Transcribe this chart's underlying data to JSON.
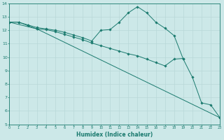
{
  "background_color": "#cce8e8",
  "grid_color": "#b8d8d8",
  "line_color": "#1a7a6e",
  "xlabel": "Humidex (Indice chaleur)",
  "xlim": [
    0,
    23
  ],
  "ylim": [
    5,
    14
  ],
  "yticks": [
    5,
    6,
    7,
    8,
    9,
    10,
    11,
    12,
    13,
    14
  ],
  "xticks": [
    0,
    1,
    2,
    3,
    4,
    5,
    6,
    7,
    8,
    9,
    10,
    11,
    12,
    13,
    14,
    15,
    16,
    17,
    18,
    19,
    20,
    21,
    22,
    23
  ],
  "series1_x": [
    0,
    1,
    2,
    3,
    4,
    5,
    6,
    7,
    8,
    9,
    10,
    11,
    12,
    13,
    14,
    15,
    16,
    17,
    18,
    19,
    20,
    21,
    22,
    23
  ],
  "series1_y": [
    12.6,
    12.6,
    12.4,
    12.2,
    12.1,
    12.0,
    11.85,
    11.65,
    11.45,
    11.2,
    12.0,
    12.05,
    12.6,
    13.3,
    13.75,
    13.3,
    12.6,
    12.15,
    11.6,
    9.85,
    8.5,
    6.6,
    6.45,
    5.5
  ],
  "series2_x": [
    0,
    1,
    2,
    3,
    4,
    5,
    6,
    7,
    8,
    9,
    10,
    11,
    12,
    13,
    14,
    15,
    16,
    17,
    18,
    19
  ],
  "series2_y": [
    12.6,
    12.6,
    12.35,
    12.1,
    12.05,
    11.9,
    11.7,
    11.5,
    11.3,
    11.05,
    10.85,
    10.65,
    10.45,
    10.25,
    10.1,
    9.85,
    9.6,
    9.35,
    9.85,
    9.9
  ],
  "series3_x": [
    0,
    3,
    23
  ],
  "series3_y": [
    12.6,
    12.1,
    5.5
  ]
}
